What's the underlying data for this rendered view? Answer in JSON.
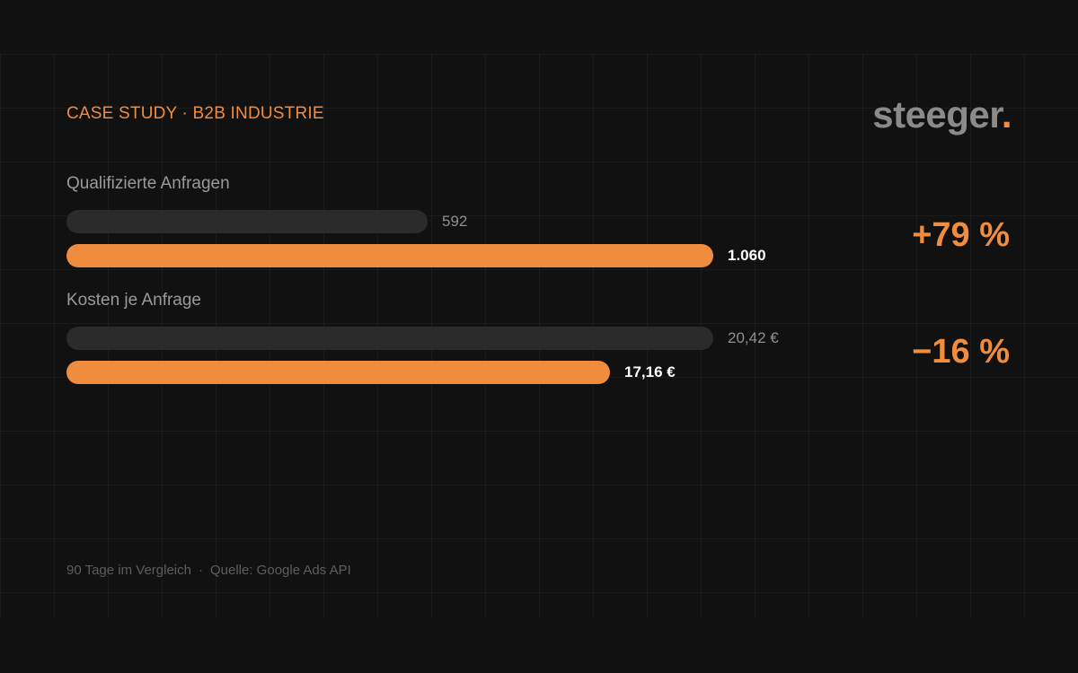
{
  "header": {
    "eyebrow": "CASE STUDY · B2B INDUSTRIE",
    "logo_text": "steeger",
    "logo_dot": "."
  },
  "colors": {
    "accent": "#f08c3e",
    "track": "#2b2b2b",
    "background": "#111111"
  },
  "chart_data": {
    "type": "bar",
    "metrics": [
      {
        "label": "Qualifizierte Anfragen",
        "before": 592,
        "after": 1060,
        "before_label": "592",
        "after_label": "1.060",
        "delta": "+79 %"
      },
      {
        "label": "Kosten je Anfrage",
        "before": 20.42,
        "after": 17.16,
        "before_label": "20,42 €",
        "after_label": "17,16 €",
        "delta": "−16 %"
      }
    ]
  },
  "footer": {
    "period": "90 Tage im Vergleich",
    "separator": "·",
    "source": "Quelle: Google Ads API"
  }
}
